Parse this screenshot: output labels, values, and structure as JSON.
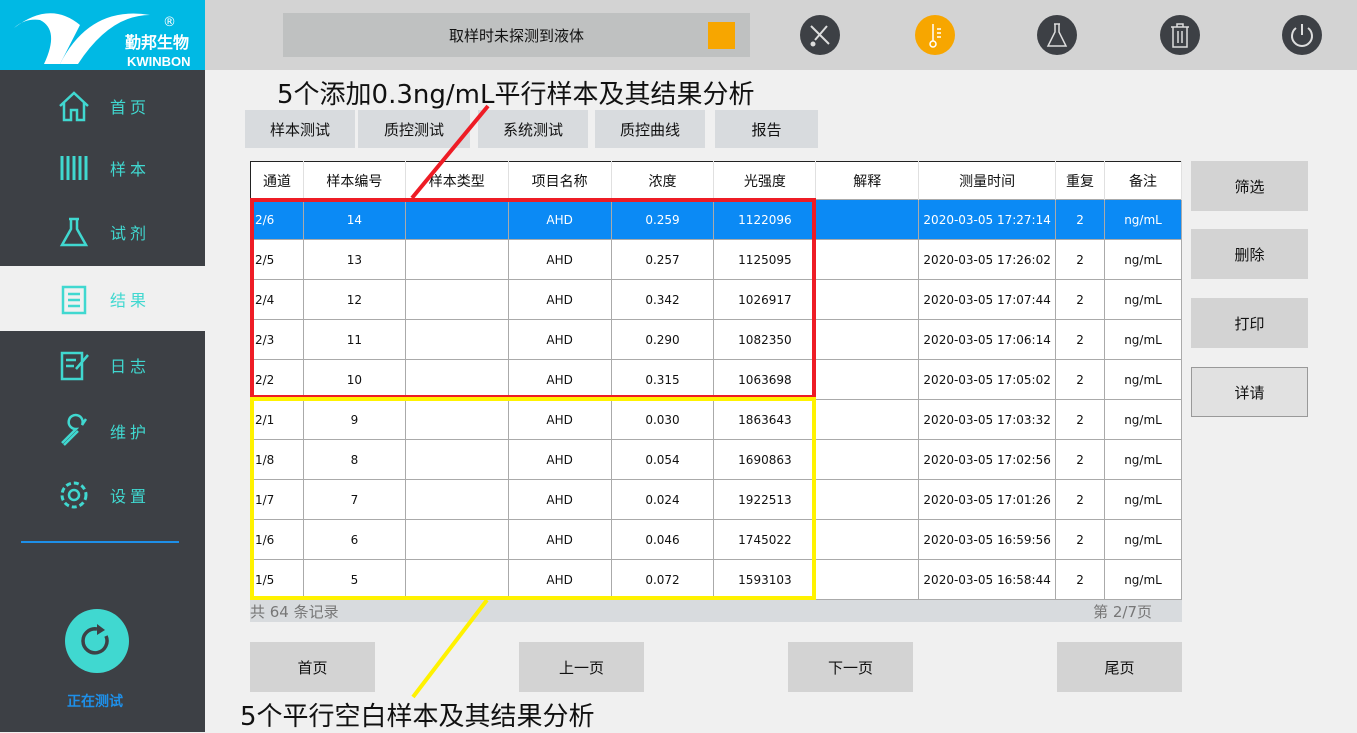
{
  "logo": {
    "brand_cn": "勤邦生物",
    "brand_en": "KWINBON",
    "reg": "®"
  },
  "status": {
    "message": "取样时未探测到液体",
    "indicator_color": "#f7a600"
  },
  "toolbar": [
    {
      "icon": "no-pipette-icon",
      "color": "#3d4045"
    },
    {
      "icon": "thermometer-icon",
      "color": "#f7a600"
    },
    {
      "icon": "flask-icon",
      "color": "#3d4045"
    },
    {
      "icon": "trash-icon",
      "color": "#3d4045"
    },
    {
      "icon": "power-icon",
      "color": "#3d4045"
    }
  ],
  "sidebar": {
    "items": [
      {
        "label": "首页",
        "icon": "home-icon"
      },
      {
        "label": "样本",
        "icon": "test-tubes-icon"
      },
      {
        "label": "试剂",
        "icon": "flask-icon"
      },
      {
        "label": "结果",
        "icon": "clipboard-icon",
        "active": true
      },
      {
        "label": "日志",
        "icon": "log-icon"
      },
      {
        "label": "维护",
        "icon": "wrench-icon"
      },
      {
        "label": "设置",
        "icon": "gear-icon"
      }
    ],
    "running_label": "正在测试"
  },
  "tabs": [
    "样本测试",
    "质控测试",
    "系统测试",
    "质控曲线",
    "报告"
  ],
  "table": {
    "headers": [
      "通道",
      "样本编号",
      "样本类型",
      "项目名称",
      "浓度",
      "光强度",
      "解释",
      "测量时间",
      "重复",
      "备注"
    ],
    "rows": [
      [
        "2/6",
        "14",
        "",
        "AHD",
        "0.259",
        "1122096",
        "",
        "2020-03-05 17:27:14",
        "2",
        "ng/mL"
      ],
      [
        "2/5",
        "13",
        "",
        "AHD",
        "0.257",
        "1125095",
        "",
        "2020-03-05 17:26:02",
        "2",
        "ng/mL"
      ],
      [
        "2/4",
        "12",
        "",
        "AHD",
        "0.342",
        "1026917",
        "",
        "2020-03-05 17:07:44",
        "2",
        "ng/mL"
      ],
      [
        "2/3",
        "11",
        "",
        "AHD",
        "0.290",
        "1082350",
        "",
        "2020-03-05 17:06:14",
        "2",
        "ng/mL"
      ],
      [
        "2/2",
        "10",
        "",
        "AHD",
        "0.315",
        "1063698",
        "",
        "2020-03-05 17:05:02",
        "2",
        "ng/mL"
      ],
      [
        "2/1",
        "9",
        "",
        "AHD",
        "0.030",
        "1863643",
        "",
        "2020-03-05 17:03:32",
        "2",
        "ng/mL"
      ],
      [
        "1/8",
        "8",
        "",
        "AHD",
        "0.054",
        "1690863",
        "",
        "2020-03-05 17:02:56",
        "2",
        "ng/mL"
      ],
      [
        "1/7",
        "7",
        "",
        "AHD",
        "0.024",
        "1922513",
        "",
        "2020-03-05 17:01:26",
        "2",
        "ng/mL"
      ],
      [
        "1/6",
        "6",
        "",
        "AHD",
        "0.046",
        "1745022",
        "",
        "2020-03-05 16:59:56",
        "2",
        "ng/mL"
      ],
      [
        "1/5",
        "5",
        "",
        "AHD",
        "0.072",
        "1593103",
        "",
        "2020-03-05 16:58:44",
        "2",
        "ng/mL"
      ]
    ],
    "selected_row": 0
  },
  "footer": {
    "total": "共 64 条记录",
    "page": "第 2/7页"
  },
  "pager": [
    "首页",
    "上一页",
    "下一页",
    "尾页"
  ],
  "actions": [
    "筛选",
    "删除",
    "打印",
    "详请"
  ],
  "annotations": {
    "top": "5个添加0.3ng/mL平行样本及其结果分析",
    "bottom": "5个平行空白样本及其结果分析",
    "top_color": "#ee1c25",
    "bottom_color": "#fff200"
  }
}
